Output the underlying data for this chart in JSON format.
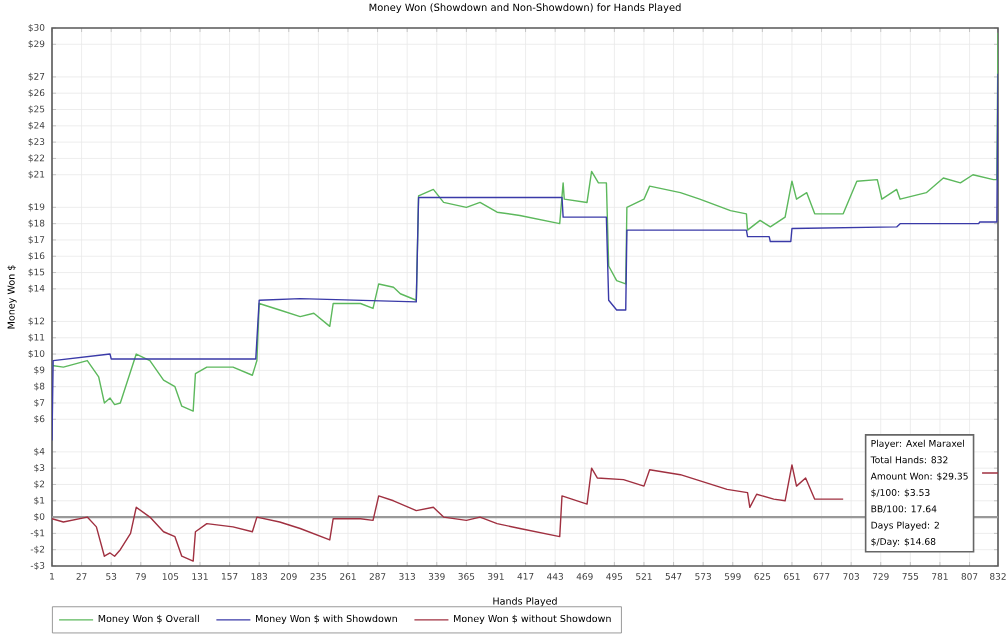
{
  "chart_data": {
    "type": "line",
    "title": "Money Won (Showdown and Non-Showdown) for Hands Played",
    "xlabel": "Hands Played",
    "ylabel": "Money Won $",
    "xlim": [
      1,
      832
    ],
    "xticks": [
      1,
      27,
      53,
      79,
      105,
      131,
      157,
      183,
      209,
      235,
      261,
      287,
      313,
      339,
      365,
      391,
      417,
      443,
      469,
      495,
      521,
      547,
      573,
      599,
      625,
      651,
      677,
      703,
      729,
      755,
      781,
      807,
      832
    ],
    "ylim": [
      -3,
      30
    ],
    "yticks": [
      {
        "value": -3,
        "label": "-$3"
      },
      {
        "value": -2,
        "label": "-$2"
      },
      {
        "value": -1,
        "label": "-$1"
      },
      {
        "value": 0,
        "label": "$0"
      },
      {
        "value": 1,
        "label": "$1"
      },
      {
        "value": 2,
        "label": "$2"
      },
      {
        "value": 3,
        "label": "$3"
      },
      {
        "value": 4,
        "label": "$4"
      },
      {
        "value": 6,
        "label": "$6"
      },
      {
        "value": 7,
        "label": "$7"
      },
      {
        "value": 8,
        "label": "$8"
      },
      {
        "value": 9,
        "label": "$9"
      },
      {
        "value": 10,
        "label": "$10"
      },
      {
        "value": 11,
        "label": "$11"
      },
      {
        "value": 12,
        "label": "$12"
      },
      {
        "value": 14,
        "label": "$14"
      },
      {
        "value": 15,
        "label": "$15"
      },
      {
        "value": 16,
        "label": "$16"
      },
      {
        "value": 17,
        "label": "$17"
      },
      {
        "value": 18,
        "label": "$18"
      },
      {
        "value": 19,
        "label": "$19"
      },
      {
        "value": 21,
        "label": "$21"
      },
      {
        "value": 22,
        "label": "$22"
      },
      {
        "value": 23,
        "label": "$23"
      },
      {
        "value": 24,
        "label": "$24"
      },
      {
        "value": 25,
        "label": "$25"
      },
      {
        "value": 26,
        "label": "$26"
      },
      {
        "value": 27,
        "label": "$27"
      },
      {
        "value": 29,
        "label": "$29"
      },
      {
        "value": 30,
        "label": "$30"
      }
    ],
    "grid": true,
    "legend": "bottom",
    "marker": "none",
    "line_style": "solid",
    "ref_lines": [
      {
        "axis": "y",
        "value": 0,
        "color": "#999999"
      }
    ],
    "annotations": [
      "Player: Axel Maraxel",
      "Total Hands: 832",
      "Amount Won: $29.35",
      "$/100: $3.53",
      "BB/100: 17.64",
      "Days Played: 2",
      "$/Day: $14.68"
    ],
    "series": [
      {
        "name": "Money Won $ Overall",
        "color": "#5cb85c",
        "x": [
          1,
          11,
          32,
          42,
          47,
          52,
          56,
          61,
          75,
          87,
          99,
          109,
          115,
          125,
          127,
          137,
          160,
          177,
          181,
          183,
          201,
          219,
          231,
          245,
          248,
          272,
          283,
          288,
          301,
          307,
          321,
          323,
          336,
          345,
          365,
          377,
          392,
          412,
          447,
          450,
          451,
          471,
          475,
          481,
          488,
          490,
          497,
          505,
          506,
          521,
          526,
          553,
          570,
          597,
          611,
          612,
          623,
          632,
          645,
          651,
          655,
          664,
          671,
          696,
          708,
          726,
          730,
          743,
          746,
          769,
          784,
          799,
          810,
          828,
          831,
          832
        ],
        "values": [
          9.3,
          9.2,
          9.6,
          8.6,
          7.0,
          7.3,
          6.9,
          7.0,
          10.0,
          9.6,
          8.4,
          8.0,
          6.8,
          6.5,
          8.8,
          9.2,
          9.2,
          8.7,
          9.6,
          13.1,
          12.7,
          12.3,
          12.5,
          11.7,
          13.1,
          13.1,
          12.8,
          14.3,
          14.1,
          13.7,
          13.3,
          19.7,
          20.1,
          19.3,
          19.0,
          19.3,
          18.7,
          18.5,
          18.0,
          20.5,
          19.5,
          19.3,
          21.2,
          20.5,
          20.5,
          15.4,
          14.5,
          14.3,
          19.0,
          19.5,
          20.3,
          19.9,
          19.5,
          18.8,
          18.6,
          17.6,
          18.2,
          17.8,
          18.4,
          20.6,
          19.5,
          19.9,
          18.6,
          18.6,
          20.6,
          20.7,
          19.5,
          20.1,
          19.5,
          19.9,
          20.8,
          20.5,
          21.0,
          20.7,
          20.7,
          29.7
        ]
      },
      {
        "name": "Money Won $ with Showdown",
        "color": "#3a3aa8",
        "x": [
          1,
          2,
          52,
          53,
          180,
          183,
          219,
          321,
          323,
          449,
          450,
          488,
          490,
          497,
          505,
          506,
          611,
          612,
          631,
          632,
          650,
          651,
          743,
          746,
          815,
          816,
          831,
          832
        ],
        "values": [
          4.7,
          9.6,
          10.0,
          9.7,
          9.7,
          13.3,
          13.4,
          13.2,
          19.6,
          19.6,
          18.4,
          18.4,
          13.3,
          12.7,
          12.7,
          17.6,
          17.6,
          17.2,
          17.2,
          16.9,
          16.9,
          17.7,
          17.8,
          18.0,
          18.0,
          18.1,
          18.1,
          27.2
        ]
      },
      {
        "name": "Money Won $ without Showdown",
        "color": "#a03040",
        "x": [
          1,
          11,
          32,
          40,
          47,
          52,
          56,
          61,
          70,
          75,
          87,
          99,
          109,
          115,
          125,
          127,
          137,
          160,
          177,
          181,
          201,
          219,
          245,
          248,
          272,
          283,
          288,
          301,
          321,
          336,
          345,
          365,
          377,
          392,
          412,
          447,
          449,
          471,
          475,
          480,
          503,
          521,
          526,
          553,
          594,
          612,
          614,
          620,
          635,
          645,
          651,
          655,
          663,
          671,
          696,
          702,
          818,
          832
        ],
        "values": [
          -0.1,
          -0.3,
          0.0,
          -0.6,
          -2.4,
          -2.2,
          -2.4,
          -2.0,
          -1.0,
          0.6,
          0.0,
          -0.9,
          -1.2,
          -2.4,
          -2.7,
          -0.9,
          -0.4,
          -0.6,
          -0.9,
          0.0,
          -0.3,
          -0.7,
          -1.4,
          -0.1,
          -0.1,
          -0.2,
          1.3,
          1.0,
          0.4,
          0.6,
          0.0,
          -0.2,
          0.0,
          -0.4,
          -0.7,
          -1.2,
          1.3,
          0.8,
          3.0,
          2.4,
          2.3,
          1.9,
          2.9,
          2.6,
          1.7,
          1.5,
          0.6,
          1.4,
          1.1,
          1.0,
          3.2,
          1.9,
          2.4,
          1.1,
          1.1,
          null,
          2.7,
          2.7
        ]
      }
    ]
  }
}
